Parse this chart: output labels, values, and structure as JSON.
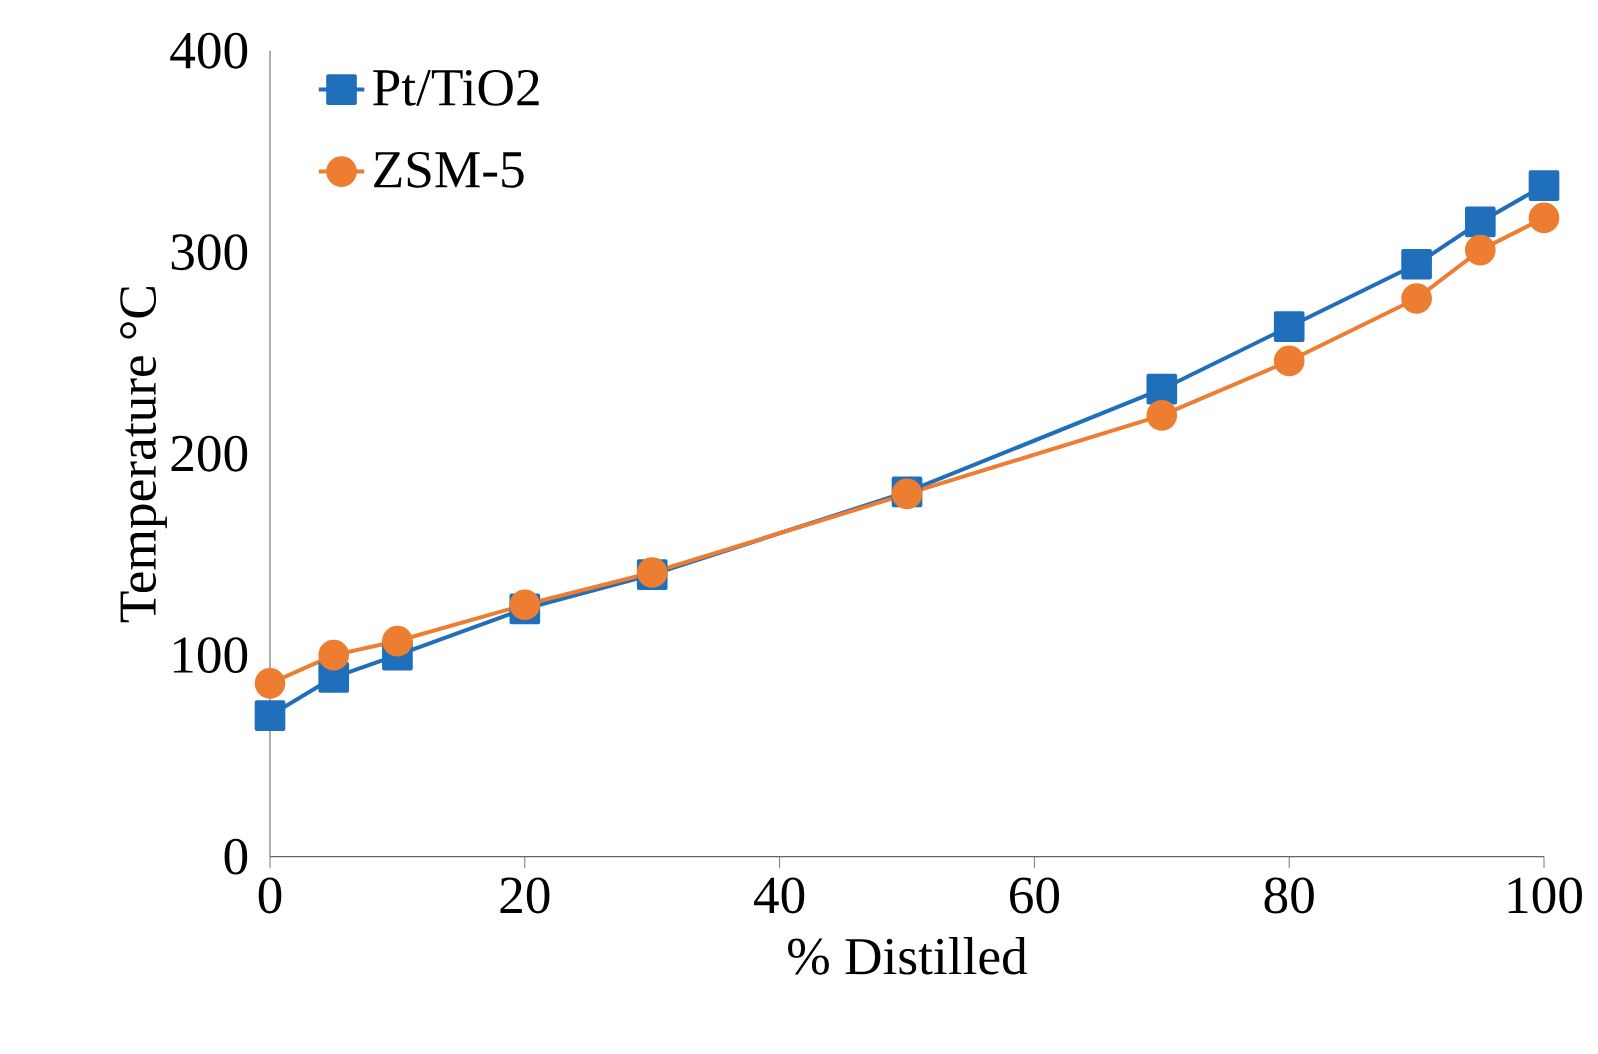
{
  "chart_data": {
    "type": "line",
    "xlabel": "% Distilled",
    "ylabel": "Temperature  °C",
    "x": [
      0,
      5,
      10,
      20,
      30,
      50,
      70,
      80,
      90,
      95,
      100
    ],
    "series": [
      {
        "name": "Pt/TiO2",
        "color": "#1f6fba",
        "marker": "square",
        "values": [
          70,
          89,
          100,
          123,
          140,
          181,
          232,
          263,
          294,
          315,
          333
        ]
      },
      {
        "name": "ZSM-5",
        "color": "#ed7d31",
        "marker": "circle",
        "values": [
          86,
          100,
          107,
          125,
          141,
          180,
          219,
          246,
          277,
          301,
          317
        ]
      }
    ],
    "xlim": [
      0,
      100
    ],
    "xticks": [
      0,
      20,
      40,
      60,
      80,
      100
    ],
    "ylim": [
      0,
      400
    ],
    "yticks": [
      0,
      100,
      200,
      300,
      400
    ],
    "grid": false,
    "legend": "top left",
    "line_style": "solid"
  }
}
